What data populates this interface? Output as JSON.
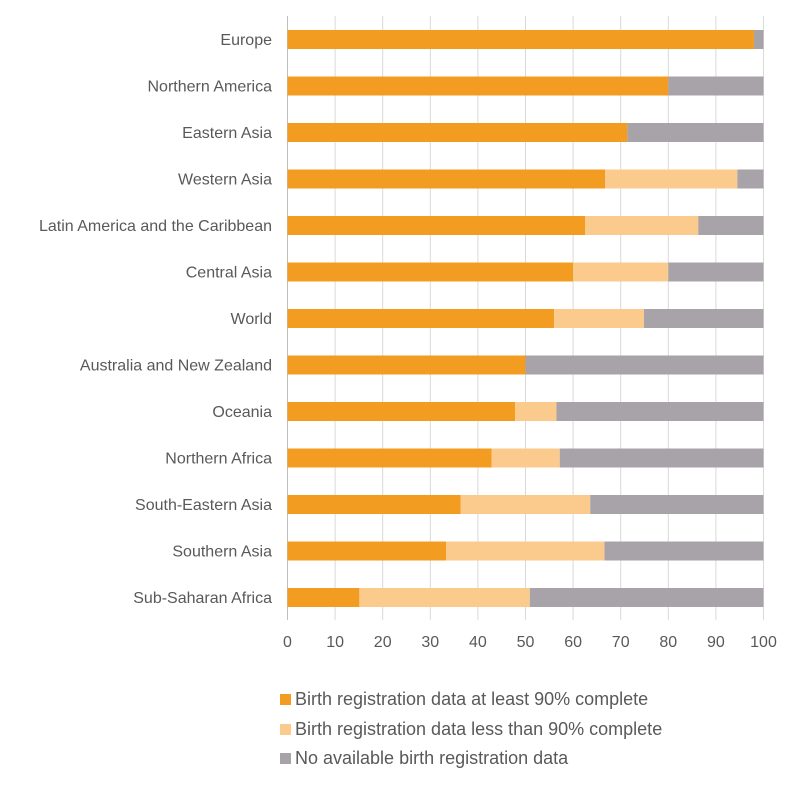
{
  "chart_data": {
    "type": "bar",
    "orientation": "horizontal",
    "stacked": true,
    "categories": [
      "Europe",
      "Northern America",
      "Eastern Asia",
      "Western Asia",
      "Latin America and the Caribbean",
      "Central Asia",
      "World",
      "Australia and New Zealand",
      "Oceania",
      "Northern Africa",
      "South-Eastern Asia",
      "Southern Asia",
      "Sub-Saharan Africa"
    ],
    "series": [
      {
        "name": "Birth registration data at least 90% complete",
        "color": "#f39c22",
        "values": [
          98,
          80,
          71.4,
          66.7,
          62.5,
          60,
          56,
          50,
          47.8,
          42.9,
          36.4,
          33.3,
          15.1
        ]
      },
      {
        "name": "Birth registration data less than 90% complete",
        "color": "#fbcb8d",
        "values": [
          0,
          0,
          0,
          27.8,
          23.8,
          20,
          18.9,
          0,
          8.7,
          14.3,
          27.2,
          33.3,
          35.8
        ]
      },
      {
        "name": "No available birth registration data",
        "color": "#a8a3a8",
        "values": [
          2,
          20,
          28.6,
          5.5,
          13.7,
          20,
          25.1,
          50,
          43.5,
          42.8,
          36.4,
          33.4,
          49.1
        ]
      }
    ],
    "x_ticks": [
      0,
      10,
      20,
      30,
      40,
      50,
      60,
      70,
      80,
      90,
      100
    ],
    "xlim": [
      0,
      100
    ],
    "grid": "vertical",
    "legend_position": "bottom"
  }
}
